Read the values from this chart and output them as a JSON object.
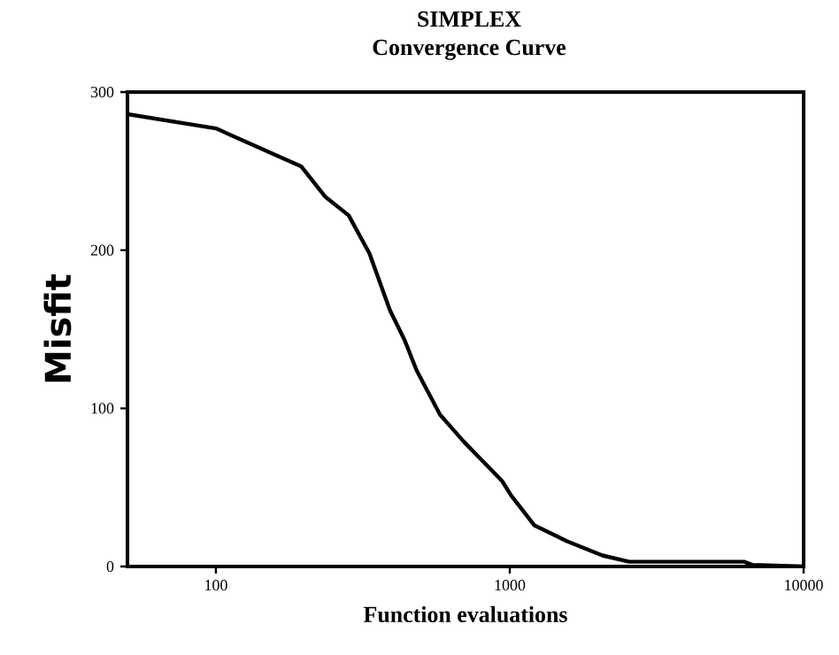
{
  "chart_data": {
    "type": "line",
    "title": "SIMPLEX",
    "subtitle": "Convergence Curve",
    "xlabel": "Function evaluations",
    "ylabel": "Misfit",
    "log": "x",
    "xlim": [
      50,
      10000
    ],
    "xticks": [
      100,
      1000,
      10000
    ],
    "ylim": [
      0,
      300
    ],
    "yticks": [
      0,
      100,
      200,
      300
    ],
    "grid": false,
    "marker": "none",
    "line_style": "solid",
    "x": [
      50,
      100,
      195,
      235,
      283,
      333,
      391,
      439,
      482,
      579,
      697,
      942,
      1010,
      1213,
      1567,
      2065,
      2547,
      6266,
      6712,
      10000
    ],
    "series": [
      {
        "color": "#000000",
        "values": [
          286,
          277,
          253,
          234,
          222,
          198,
          162,
          143,
          124,
          96,
          79,
          54,
          45,
          26,
          16,
          7,
          3,
          3,
          1,
          0
        ]
      }
    ]
  }
}
